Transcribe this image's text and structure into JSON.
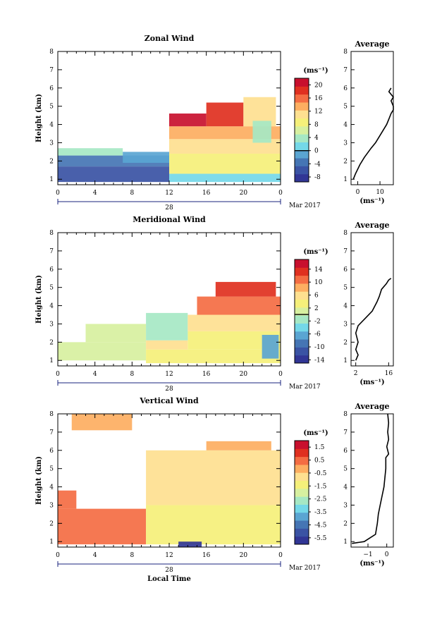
{
  "chart_data": [
    {
      "type": "heatmap",
      "title": "Zonal Wind",
      "ylabel": "Height (km)",
      "xlabel": "",
      "x_ticks": [
        "0",
        "4",
        "8",
        "12",
        "16",
        "20",
        "0"
      ],
      "y_ticks": [
        "1",
        "2",
        "3",
        "4",
        "5",
        "6",
        "7",
        "8"
      ],
      "xlim": [
        0,
        24
      ],
      "ylim": [
        0.7,
        8
      ],
      "date_day": "28",
      "date_month": "Mar 2017",
      "colorbar": {
        "unit": "(ms⁻¹)",
        "range": [
          -9.5,
          22
        ],
        "ticks": [
          "20",
          "16",
          "12",
          "8",
          "4",
          "0",
          "-4",
          "-8"
        ],
        "zero_line_value": 0
      },
      "regions": [
        {
          "x0": 0.0,
          "x1": 12.0,
          "y0": 0.85,
          "y1": 1.7,
          "value": -7
        },
        {
          "x0": 0.0,
          "x1": 12.0,
          "y0": 1.7,
          "y1": 2.3,
          "value": -3
        },
        {
          "x0": 0.0,
          "x1": 7.0,
          "y0": 2.3,
          "y1": 2.7,
          "value": 3
        },
        {
          "x0": 7.0,
          "x1": 12.0,
          "y0": 1.9,
          "y1": 2.5,
          "value": 0
        },
        {
          "x0": 12.0,
          "x1": 24.0,
          "y0": 0.85,
          "y1": 1.3,
          "value": 2
        },
        {
          "x0": 12.0,
          "x1": 24.0,
          "y0": 1.3,
          "y1": 2.4,
          "value": 8
        },
        {
          "x0": 12.0,
          "x1": 24.0,
          "y0": 2.4,
          "y1": 3.2,
          "value": 10
        },
        {
          "x0": 12.0,
          "x1": 24.0,
          "y0": 3.2,
          "y1": 3.9,
          "value": 14
        },
        {
          "x0": 12.0,
          "x1": 16.0,
          "y0": 3.9,
          "y1": 4.6,
          "value": 20
        },
        {
          "x0": 16.0,
          "x1": 20.0,
          "y0": 3.9,
          "y1": 5.2,
          "value": 18
        },
        {
          "x0": 20.0,
          "x1": 23.5,
          "y0": 3.9,
          "y1": 5.5,
          "value": 12
        },
        {
          "x0": 21.0,
          "x1": 23.0,
          "y0": 3.0,
          "y1": 4.2,
          "value": 5
        }
      ],
      "profile": {
        "title": "Average",
        "xlabel": "(ms⁻¹)",
        "x_ticks": [
          "0",
          "10"
        ],
        "y_ticks": [
          "1",
          "2",
          "3",
          "4",
          "5",
          "6",
          "7",
          "8"
        ],
        "xlim": [
          -3,
          16
        ],
        "ylim": [
          0.7,
          8
        ],
        "x": [
          -2,
          -1,
          1,
          3,
          6,
          8,
          10,
          12,
          13,
          14,
          15,
          16,
          16,
          15,
          16,
          14,
          15
        ],
        "y": [
          1.0,
          1.3,
          1.8,
          2.2,
          2.7,
          3.0,
          3.4,
          3.8,
          4.0,
          4.3,
          4.6,
          4.8,
          5.0,
          5.3,
          5.5,
          5.8,
          6.0
        ]
      }
    },
    {
      "type": "heatmap",
      "title": "Meridional Wind",
      "ylabel": "Height (km)",
      "xlabel": "",
      "x_ticks": [
        "0",
        "4",
        "8",
        "12",
        "16",
        "20",
        "0"
      ],
      "y_ticks": [
        "1",
        "2",
        "3",
        "4",
        "5",
        "6",
        "7",
        "8"
      ],
      "xlim": [
        0,
        24
      ],
      "ylim": [
        0.7,
        8
      ],
      "date_day": "28",
      "date_month": "Mar 2017",
      "colorbar": {
        "unit": "(ms⁻¹)",
        "range": [
          -15,
          17
        ],
        "ticks": [
          "14",
          "10",
          "6",
          "2",
          "-2",
          "-6",
          "-10",
          "-14"
        ],
        "zero_line_value": 0
      },
      "regions": [
        {
          "x0": 0.0,
          "x1": 9.5,
          "y0": 1.0,
          "y1": 2.0,
          "value": 0
        },
        {
          "x0": 3.0,
          "x1": 9.5,
          "y0": 2.0,
          "y1": 3.0,
          "value": 1
        },
        {
          "x0": 9.5,
          "x1": 24.0,
          "y0": 0.85,
          "y1": 1.6,
          "value": 4
        },
        {
          "x0": 9.5,
          "x1": 14.0,
          "y0": 1.6,
          "y1": 2.1,
          "value": 7
        },
        {
          "x0": 14.0,
          "x1": 24.0,
          "y0": 1.6,
          "y1": 2.6,
          "value": 3
        },
        {
          "x0": 9.5,
          "x1": 14.0,
          "y0": 2.1,
          "y1": 3.6,
          "value": -1
        },
        {
          "x0": 14.0,
          "x1": 24.0,
          "y0": 2.6,
          "y1": 3.5,
          "value": 5
        },
        {
          "x0": 15.0,
          "x1": 24.0,
          "y0": 3.5,
          "y1": 4.5,
          "value": 11
        },
        {
          "x0": 17.0,
          "x1": 23.5,
          "y0": 4.5,
          "y1": 5.3,
          "value": 13
        },
        {
          "x0": 22.0,
          "x1": 23.8,
          "y0": 1.1,
          "y1": 2.4,
          "value": -6
        }
      ],
      "profile": {
        "title": "Average",
        "xlabel": "(ms⁻¹)",
        "x_ticks": [
          "2",
          "16"
        ],
        "y_ticks": [
          "1",
          "2",
          "3",
          "4",
          "5",
          "6",
          "7",
          "8"
        ],
        "xlim": [
          0,
          18
        ],
        "ylim": [
          0.7,
          8
        ],
        "x": [
          2,
          3,
          2,
          3,
          2,
          3,
          6,
          9,
          11,
          12,
          13,
          15,
          16,
          17
        ],
        "y": [
          1.0,
          1.3,
          1.6,
          2.0,
          2.5,
          2.9,
          3.3,
          3.7,
          4.2,
          4.5,
          4.9,
          5.2,
          5.4,
          5.5
        ]
      }
    },
    {
      "type": "heatmap",
      "title": "Vertical Wind",
      "ylabel": "Height (km)",
      "xlabel": "Local Time",
      "x_ticks": [
        "0",
        "4",
        "8",
        "12",
        "16",
        "20",
        "0"
      ],
      "y_ticks": [
        "1",
        "2",
        "3",
        "4",
        "5",
        "6",
        "7",
        "8"
      ],
      "xlim": [
        0,
        24
      ],
      "ylim": [
        0.7,
        8
      ],
      "date_day": "28",
      "date_month": "Mar 2017",
      "colorbar": {
        "unit": "(ms⁻¹)",
        "range": [
          -6.0,
          2.0
        ],
        "ticks": [
          "1.5",
          "0.5",
          "-0.5",
          "-1.5",
          "-2.5",
          "-3.5",
          "-4.5",
          "-5.5"
        ],
        "zero_line_value": null
      },
      "regions": [
        {
          "x0": 0.0,
          "x1": 9.5,
          "y0": 0.85,
          "y1": 2.8,
          "value": 0.3
        },
        {
          "x0": 0.0,
          "x1": 2.0,
          "y0": 2.8,
          "y1": 3.8,
          "value": 0.6
        },
        {
          "x0": 9.5,
          "x1": 24.0,
          "y0": 0.85,
          "y1": 3.0,
          "value": -1.3
        },
        {
          "x0": 9.5,
          "x1": 24.0,
          "y0": 3.0,
          "y1": 6.0,
          "value": -0.8
        },
        {
          "x0": 16.0,
          "x1": 23.0,
          "y0": 6.0,
          "y1": 6.5,
          "value": -0.4
        },
        {
          "x0": 13.0,
          "x1": 15.5,
          "y0": 0.7,
          "y1": 1.0,
          "value": -5.4
        },
        {
          "x0": 1.5,
          "x1": 8.0,
          "y0": 7.1,
          "y1": 8.0,
          "value": -0.3
        }
      ],
      "profile": {
        "title": "Average",
        "xlabel": "(ms⁻¹)",
        "x_ticks": [
          "−1",
          "0"
        ],
        "y_ticks": [
          "1",
          "2",
          "3",
          "4",
          "5",
          "6",
          "7",
          "8"
        ],
        "xlim": [
          -1.9,
          0.35
        ],
        "ylim": [
          0.7,
          8
        ],
        "x": [
          -1.85,
          -1.2,
          -0.6,
          -0.5,
          -0.45,
          -0.35,
          -0.25,
          -0.15,
          -0.1,
          -0.05,
          -0.05,
          0.1,
          0.0,
          0.1,
          0.05,
          0.1,
          0.05
        ],
        "y": [
          0.9,
          1.0,
          1.4,
          2.0,
          2.5,
          3.0,
          3.5,
          4.0,
          4.5,
          5.0,
          5.6,
          5.8,
          6.2,
          6.6,
          7.0,
          7.5,
          8.0
        ]
      }
    }
  ],
  "colors": {
    "colormap": [
      "#313695",
      "#3a53a4",
      "#4575b4",
      "#5aa5d2",
      "#74d8e8",
      "#a6e8c4",
      "#d7f0a0",
      "#f5f07a",
      "#fee090",
      "#fdae61",
      "#f46d43",
      "#e03020",
      "#c8102e"
    ],
    "contour": "#000000",
    "axis": "#000000",
    "date_bar": "#1a237e"
  }
}
